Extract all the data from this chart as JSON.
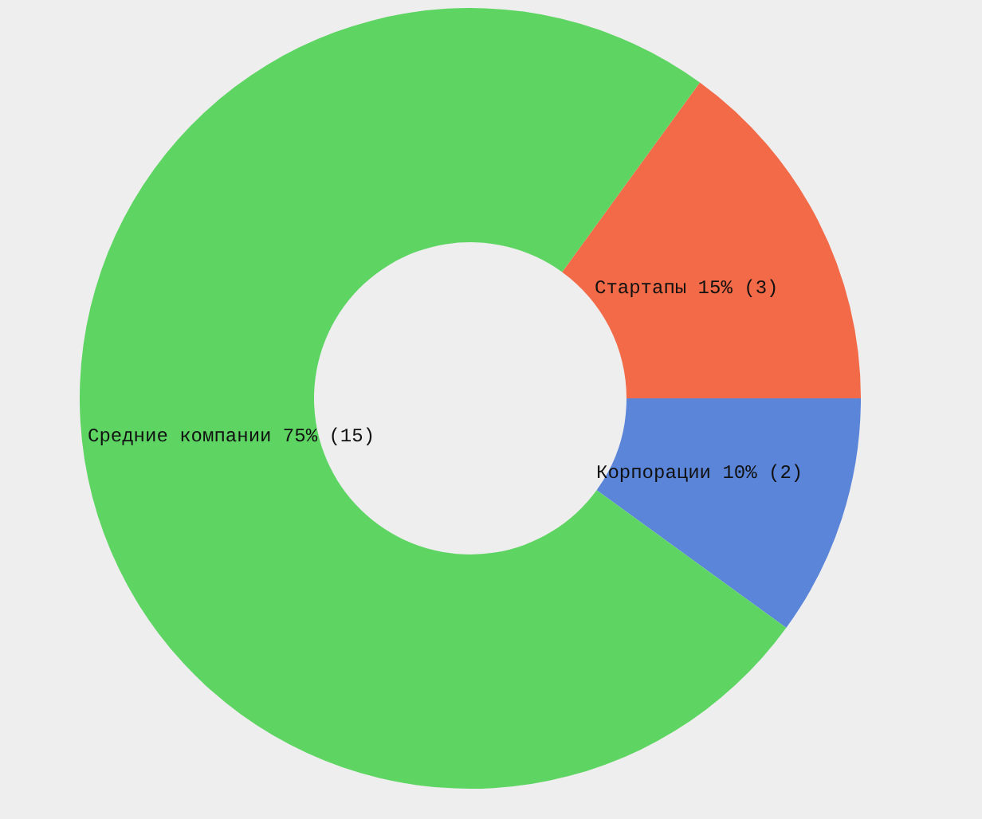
{
  "chart_data": {
    "type": "donut",
    "categories": [
      "Стартапы",
      "Корпорации",
      "Средние компании"
    ],
    "values": [
      3,
      2,
      15
    ],
    "value_labels": [
      "15% (3)",
      "10% (2)",
      "75% (15)"
    ],
    "colors": [
      "#f26a47",
      "#5b85d9",
      "#5ed563"
    ]
  }
}
